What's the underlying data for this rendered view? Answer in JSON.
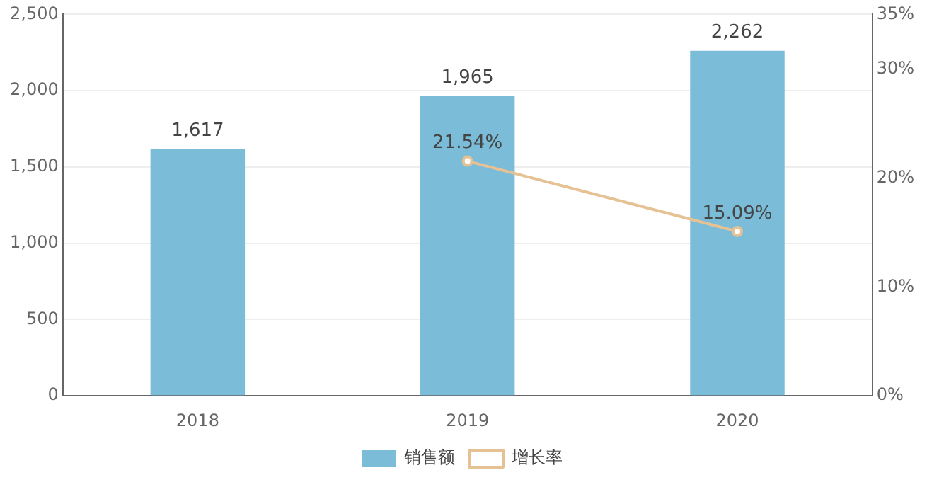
{
  "chart_data": {
    "type": "bar",
    "categories": [
      "2018",
      "2019",
      "2020"
    ],
    "series": [
      {
        "name": "销售额",
        "color": "#7bbdd9",
        "values": [
          1617,
          1965,
          2262
        ],
        "value_labels": [
          "1,617",
          "1,965",
          "2,262"
        ]
      },
      {
        "name": "增长率",
        "type": "line",
        "axis": "y2",
        "color": "#e6c193",
        "values": [
          null,
          21.54,
          15.09
        ],
        "value_labels": [
          null,
          "21.54%",
          "15.09%"
        ]
      }
    ],
    "ylim": [
      0,
      2500
    ],
    "yticks": [
      0,
      500,
      {
        "value": 1000,
        "label": "1,000"
      },
      {
        "value": 1500,
        "label": "1,500"
      },
      {
        "value": 2000,
        "label": "2,000"
      },
      {
        "value": 2500,
        "label": "2,500"
      }
    ],
    "y2lim": [
      0,
      35
    ],
    "y2ticks": [
      {
        "value": 0,
        "label": "0%"
      },
      {
        "value": 10,
        "label": "10%"
      },
      {
        "value": 20,
        "label": "20%"
      },
      {
        "value": 30,
        "label": "30%"
      },
      {
        "value": 35,
        "label": "35%"
      }
    ],
    "grid": "y",
    "legend": "bottom",
    "marker": "circle",
    "line_style": "solid"
  }
}
